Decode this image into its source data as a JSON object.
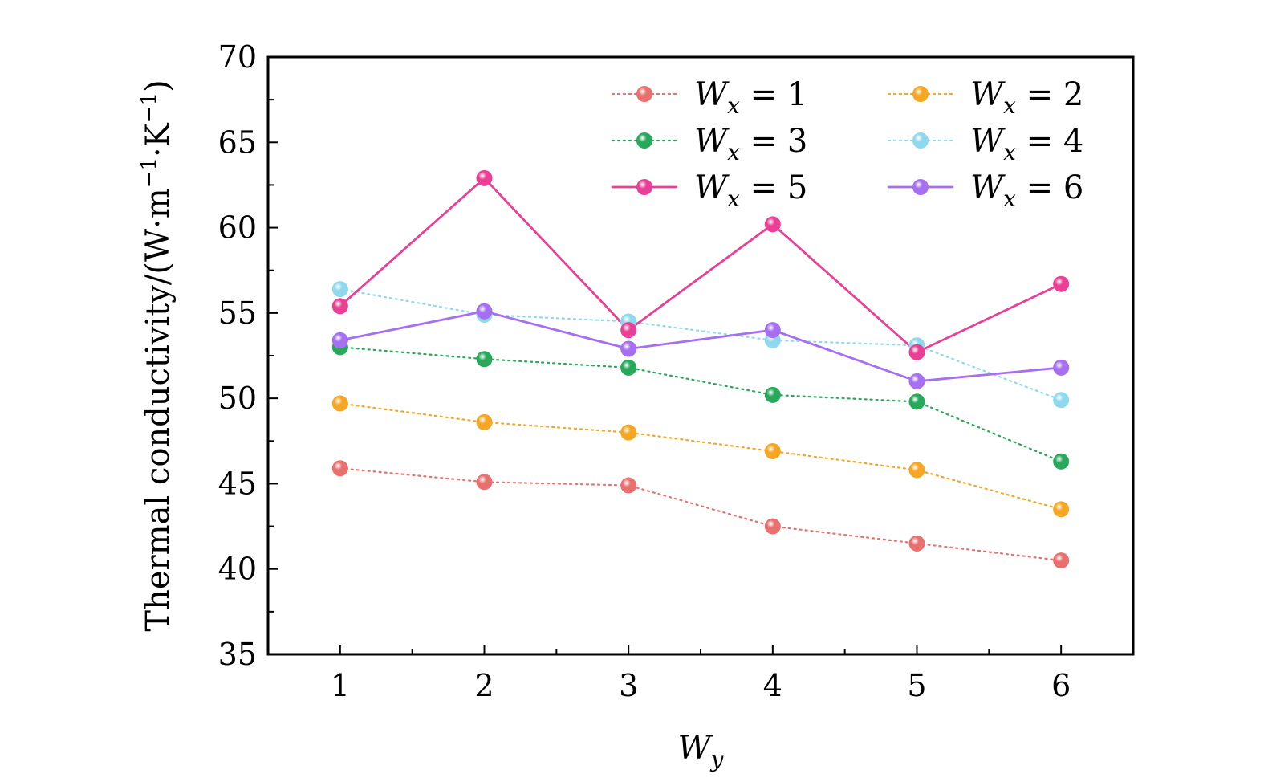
{
  "chart_data": {
    "type": "line",
    "title": "",
    "xlabel_main": "W",
    "xlabel_sub": "y",
    "ylabel_text": "Thermal conductivity/(W·m",
    "ylabel_sup1": "−1",
    "ylabel_mid": "·K",
    "ylabel_sup2": "−1",
    "ylabel_end": ")",
    "x": [
      1,
      2,
      3,
      4,
      5,
      6
    ],
    "xlim": [
      0.5,
      6.5
    ],
    "ylim": [
      35,
      70
    ],
    "xticks": [
      1,
      2,
      3,
      4,
      5,
      6
    ],
    "yticks": [
      35,
      40,
      45,
      50,
      55,
      60,
      65,
      70
    ],
    "legend_position": "top-right",
    "series": [
      {
        "name": "Wx = 1",
        "legend_main": "W",
        "legend_sub": "x",
        "legend_rest": " = 1",
        "color": "#e8706f",
        "line_style": "dotted",
        "values": [
          45.9,
          45.1,
          44.9,
          42.5,
          41.5,
          40.5
        ]
      },
      {
        "name": "Wx = 2",
        "legend_main": "W",
        "legend_sub": "x",
        "legend_rest": " = 2",
        "color": "#f5a623",
        "line_style": "dotted",
        "values": [
          49.7,
          48.6,
          48.0,
          46.9,
          45.8,
          43.5
        ]
      },
      {
        "name": "Wx = 3",
        "legend_main": "W",
        "legend_sub": "x",
        "legend_rest": " = 3",
        "color": "#27a85a",
        "line_style": "dotted",
        "values": [
          53.0,
          52.3,
          51.8,
          50.2,
          49.8,
          46.3
        ]
      },
      {
        "name": "Wx = 4",
        "legend_main": "W",
        "legend_sub": "x",
        "legend_rest": " = 4",
        "color": "#8fd9ef",
        "line_style": "dotted",
        "values": [
          56.4,
          54.9,
          54.5,
          53.4,
          53.1,
          49.9
        ]
      },
      {
        "name": "Wx = 5",
        "legend_main": "W",
        "legend_sub": "x",
        "legend_rest": " = 5",
        "color": "#ea3f96",
        "line_style": "solid",
        "values": [
          55.4,
          62.9,
          54.0,
          60.2,
          52.7,
          56.7
        ]
      },
      {
        "name": "Wx = 6",
        "legend_main": "W",
        "legend_sub": "x",
        "legend_rest": " = 6",
        "color": "#a66ef0",
        "line_style": "solid",
        "values": [
          53.4,
          55.1,
          52.9,
          54.0,
          51.0,
          51.8
        ]
      }
    ]
  }
}
